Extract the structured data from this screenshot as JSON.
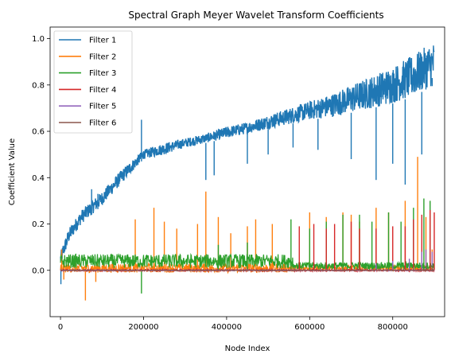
{
  "chart_data": {
    "type": "line",
    "title": "Spectral Graph Meyer Wavelet Transform Coefficients",
    "xlabel": "Node Index",
    "ylabel": "Coefficient Value",
    "xlim": [
      -25000,
      925000
    ],
    "ylim": [
      -0.2,
      1.05
    ],
    "xticks": [
      0,
      200000,
      400000,
      600000,
      800000
    ],
    "xtick_labels": [
      "0",
      "200000",
      "400000",
      "600000",
      "800000"
    ],
    "yticks": [
      0.0,
      0.2,
      0.4,
      0.6,
      0.8,
      1.0
    ],
    "ytick_labels": [
      "0.0",
      "0.2",
      "0.4",
      "0.6",
      "0.8",
      "1.0"
    ],
    "grid": false,
    "legend_position": "upper left",
    "series": [
      {
        "name": "Filter 1",
        "color": "#1f77b4",
        "envelope": {
          "x": [
            0,
            20000,
            50000,
            100000,
            150000,
            200000,
            250000,
            300000,
            350000,
            400000,
            450000,
            500000,
            550000,
            600000,
            650000,
            700000,
            750000,
            800000,
            850000,
            900000
          ],
          "upper": [
            0.08,
            0.18,
            0.26,
            0.34,
            0.44,
            0.52,
            0.55,
            0.57,
            0.59,
            0.62,
            0.64,
            0.67,
            0.7,
            0.73,
            0.76,
            0.8,
            0.84,
            0.88,
            0.93,
            0.99
          ],
          "lower": [
            0.02,
            0.12,
            0.2,
            0.28,
            0.38,
            0.48,
            0.5,
            0.53,
            0.55,
            0.57,
            0.59,
            0.61,
            0.63,
            0.65,
            0.66,
            0.68,
            0.7,
            0.72,
            0.75,
            0.8
          ]
        },
        "spikes": [
          [
            75000,
            0.35
          ],
          [
            90000,
            0.33
          ],
          [
            195000,
            0.65
          ],
          [
            350000,
            0.39
          ],
          [
            370000,
            0.41
          ],
          [
            450000,
            0.46
          ],
          [
            500000,
            0.5
          ],
          [
            560000,
            0.53
          ],
          [
            620000,
            0.52
          ],
          [
            700000,
            0.48
          ],
          [
            760000,
            0.39
          ],
          [
            800000,
            0.46
          ],
          [
            830000,
            0.37
          ],
          [
            870000,
            0.5
          ],
          [
            895000,
            0.83
          ]
        ]
      },
      {
        "name": "Filter 2",
        "color": "#ff7f0e",
        "spikes": [
          [
            3000,
            0.09
          ],
          [
            8000,
            -0.04
          ],
          [
            60000,
            -0.13
          ],
          [
            85000,
            -0.05
          ],
          [
            180000,
            0.22
          ],
          [
            225000,
            0.27
          ],
          [
            250000,
            0.21
          ],
          [
            280000,
            0.18
          ],
          [
            330000,
            0.2
          ],
          [
            350000,
            0.34
          ],
          [
            380000,
            0.23
          ],
          [
            410000,
            0.16
          ],
          [
            450000,
            0.19
          ],
          [
            470000,
            0.22
          ],
          [
            510000,
            0.2
          ],
          [
            600000,
            0.25
          ],
          [
            640000,
            0.23
          ],
          [
            680000,
            0.25
          ],
          [
            700000,
            0.24
          ],
          [
            720000,
            0.21
          ],
          [
            760000,
            0.27
          ],
          [
            790000,
            0.25
          ],
          [
            830000,
            0.3
          ],
          [
            860000,
            0.49
          ],
          [
            880000,
            0.23
          ],
          [
            895000,
            0.09
          ]
        ]
      },
      {
        "name": "Filter 3",
        "color": "#2ca02c",
        "spikes": [
          [
            195000,
            -0.1
          ],
          [
            380000,
            0.11
          ],
          [
            450000,
            0.12
          ],
          [
            555000,
            0.22
          ],
          [
            600000,
            0.18
          ],
          [
            640000,
            0.21
          ],
          [
            680000,
            0.24
          ],
          [
            720000,
            0.24
          ],
          [
            750000,
            0.21
          ],
          [
            790000,
            0.25
          ],
          [
            820000,
            0.21
          ],
          [
            850000,
            0.27
          ],
          [
            875000,
            0.31
          ],
          [
            890000,
            0.3
          ]
        ]
      },
      {
        "name": "Filter 4",
        "color": "#d62728",
        "spikes": [
          [
            575000,
            0.19
          ],
          [
            610000,
            0.2
          ],
          [
            640000,
            0.18
          ],
          [
            660000,
            0.2
          ],
          [
            700000,
            0.21
          ],
          [
            720000,
            0.18
          ],
          [
            760000,
            0.18
          ],
          [
            800000,
            0.19
          ],
          [
            830000,
            0.19
          ],
          [
            850000,
            0.22
          ],
          [
            870000,
            0.24
          ],
          [
            890000,
            0.26
          ],
          [
            900000,
            0.25
          ]
        ]
      },
      {
        "name": "Filter 5",
        "color": "#9467bd",
        "spikes": [
          [
            760000,
            0.03
          ],
          [
            800000,
            0.04
          ],
          [
            840000,
            0.05
          ],
          [
            870000,
            0.08
          ],
          [
            880000,
            0.09
          ],
          [
            895000,
            0.08
          ]
        ]
      },
      {
        "name": "Filter 6",
        "color": "#8c564b",
        "spikes": [
          [
            850000,
            0.01
          ],
          [
            880000,
            0.02
          ],
          [
            895000,
            0.02
          ]
        ]
      }
    ]
  }
}
